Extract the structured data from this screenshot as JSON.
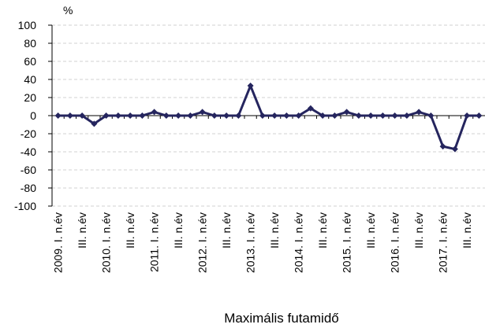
{
  "chart_data": {
    "type": "line",
    "y_label": "%",
    "x_label": "Maximális futamidő",
    "categories": [
      "2009. I. n.év",
      null,
      "III. n.év",
      null,
      "2010. I. n.év",
      null,
      "III. n.év",
      null,
      "2011. I. n.év",
      null,
      "III. n.év",
      null,
      "2012. I. n.év",
      null,
      "III. n.év",
      null,
      "2013. I. n.év",
      null,
      "III. n.év",
      null,
      "2014. I. n.év",
      null,
      "III. n.év",
      null,
      "2015. I. n.év",
      null,
      "III. n.év",
      null,
      "2016. I. n.év",
      null,
      "III. n.év",
      null,
      "2017. I. n.év",
      null,
      "III. n.év",
      null
    ],
    "series": [
      {
        "color": "#25255e",
        "values": [
          0,
          0,
          0,
          -9,
          0,
          0,
          0,
          0,
          4,
          0,
          0,
          0,
          4,
          0,
          0,
          0,
          33,
          0,
          0,
          0,
          0,
          8,
          0,
          0,
          4,
          0,
          0,
          0,
          0,
          0,
          4,
          0,
          -34,
          -37,
          0,
          0
        ]
      }
    ],
    "ylim": [
      -100,
      100
    ],
    "yticks": [
      -100,
      -80,
      -60,
      -40,
      -20,
      0,
      20,
      40,
      60,
      80,
      100
    ],
    "grid": true
  }
}
